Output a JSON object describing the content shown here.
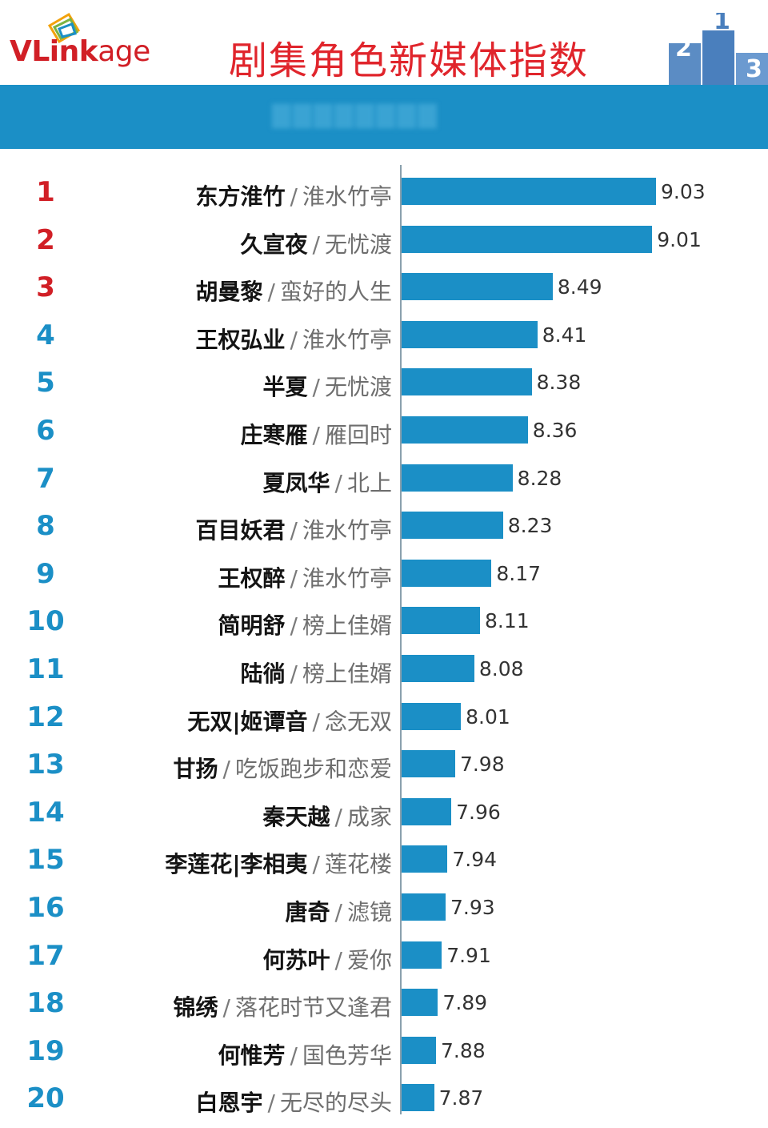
{
  "header": {
    "logo_bold": "VLink",
    "logo_rest": "age",
    "title": "剧集角色新媒体指数"
  },
  "colors": {
    "bar": "#1b8fc6",
    "top_rank": "#d11f26",
    "rank": "#1b8fc6",
    "title": "#e0252c"
  },
  "chart_data": {
    "type": "bar",
    "orientation": "horizontal",
    "title": "剧集角色新媒体指数",
    "categories": [
      {
        "rank": "1",
        "role": "东方淮竹",
        "drama": "淮水竹亭"
      },
      {
        "rank": "2",
        "role": "久宣夜",
        "drama": "无忧渡"
      },
      {
        "rank": "3",
        "role": "胡曼黎",
        "drama": "蛮好的人生"
      },
      {
        "rank": "4",
        "role": "王权弘业",
        "drama": "淮水竹亭"
      },
      {
        "rank": "5",
        "role": "半夏",
        "drama": "无忧渡"
      },
      {
        "rank": "6",
        "role": "庄寒雁",
        "drama": "雁回时"
      },
      {
        "rank": "7",
        "role": "夏凤华",
        "drama": "北上"
      },
      {
        "rank": "8",
        "role": "百目妖君",
        "drama": "淮水竹亭"
      },
      {
        "rank": "9",
        "role": "王权醉",
        "drama": "淮水竹亭"
      },
      {
        "rank": "10",
        "role": "简明舒",
        "drama": "榜上佳婿"
      },
      {
        "rank": "11",
        "role": "陆徜",
        "drama": "榜上佳婿"
      },
      {
        "rank": "12",
        "role": "无双|姬谭音",
        "drama": "念无双"
      },
      {
        "rank": "13",
        "role": "甘扬",
        "drama": "吃饭跑步和恋爱"
      },
      {
        "rank": "14",
        "role": "秦天越",
        "drama": "成家"
      },
      {
        "rank": "15",
        "role": "李莲花|李相夷",
        "drama": "莲花楼"
      },
      {
        "rank": "16",
        "role": "唐奇",
        "drama": "滤镜"
      },
      {
        "rank": "17",
        "role": "何苏叶",
        "drama": "爱你"
      },
      {
        "rank": "18",
        "role": "锦绣",
        "drama": "落花时节又逢君"
      },
      {
        "rank": "19",
        "role": "何惟芳",
        "drama": "国色芳华"
      },
      {
        "rank": "20",
        "role": "白恩宇",
        "drama": "无尽的尽头"
      }
    ],
    "values": [
      "9.03",
      "9.01",
      "8.49",
      "8.41",
      "8.38",
      "8.36",
      "8.28",
      "8.23",
      "8.17",
      "8.11",
      "8.08",
      "8.01",
      "7.98",
      "7.96",
      "7.94",
      "7.93",
      "7.91",
      "7.89",
      "7.88",
      "7.87"
    ],
    "separator": "/",
    "xlim": [
      7.7,
      9.1
    ],
    "grid": false,
    "legend": "none"
  }
}
